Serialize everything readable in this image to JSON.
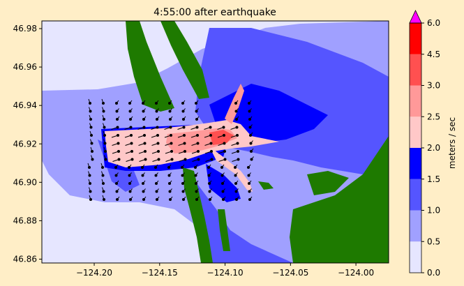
{
  "chart_data": {
    "type": "heatmap",
    "title": "4:55:00 after earthquake",
    "xlabel": "",
    "ylabel": "",
    "xlim": [
      -124.24,
      -123.975
    ],
    "ylim": [
      46.858,
      46.984
    ],
    "xticks": [
      {
        "value": -124.2,
        "label": "−124.20"
      },
      {
        "value": -124.15,
        "label": "−124.15"
      },
      {
        "value": -124.1,
        "label": "−124.10"
      },
      {
        "value": -124.05,
        "label": "−124.05"
      },
      {
        "value": -124.0,
        "label": "−124.00"
      }
    ],
    "yticks": [
      {
        "value": 46.86,
        "label": "46.86"
      },
      {
        "value": 46.88,
        "label": "46.88"
      },
      {
        "value": 46.9,
        "label": "46.90"
      },
      {
        "value": 46.92,
        "label": "46.92"
      },
      {
        "value": 46.94,
        "label": "46.94"
      },
      {
        "value": 46.96,
        "label": "46.96"
      },
      {
        "value": 46.98,
        "label": "46.98"
      }
    ],
    "colorbar": {
      "label": "meters / sec",
      "levels": [
        0.0,
        0.5,
        1.0,
        1.5,
        2.0,
        2.5,
        3.0,
        4.5,
        6.0
      ],
      "tick_labels": [
        "0.0",
        "0.5",
        "1.0",
        "1.5",
        "2.0",
        "2.5",
        "3.0",
        "4.5",
        "6.0"
      ],
      "colors": [
        "#e6e6ff",
        "#a0a0ff",
        "#5555ff",
        "#0000ff",
        "#ffc8c8",
        "#ff9999",
        "#ff5050",
        "#ff0000"
      ],
      "extend_color": "#ff00ff"
    },
    "colors": {
      "land": "#1e7a00",
      "ocean_base": "#e6e6ff",
      "arrow": "#000000"
    }
  }
}
